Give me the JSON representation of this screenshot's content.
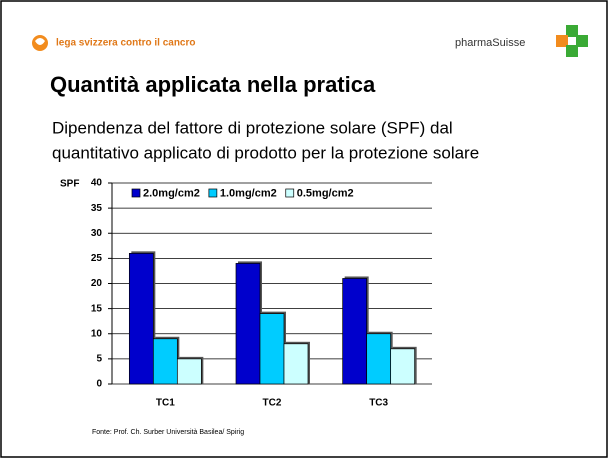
{
  "header": {
    "brand": "lega svizzera contro il cancro",
    "logo": "pharmaSuisse"
  },
  "slide": {
    "title": "Quantità applicata nella pratica",
    "subtitle_lines": [
      "Dipendenza del fattore di protezione solare (SPF) dal",
      "quantitativo applicato di prodotto per la protezione solare"
    ],
    "source": "Fonte: Prof. Ch. Surber Università Basilea/ Spirig"
  },
  "chart_data": {
    "type": "bar",
    "y_label": "SPF",
    "categories": [
      "TC1",
      "TC2",
      "TC3"
    ],
    "series": [
      {
        "name": "2.0mg/cm2",
        "color": "#0000cc",
        "values": [
          26,
          24,
          21
        ]
      },
      {
        "name": "1.0mg/cm2",
        "color": "#00ccff",
        "values": [
          9,
          14,
          10
        ]
      },
      {
        "name": "0.5mg/cm2",
        "color": "#ccffff",
        "values": [
          5,
          8,
          7
        ]
      }
    ],
    "ylim": [
      0,
      40
    ],
    "yticks": [
      0,
      5,
      10,
      15,
      20,
      25,
      30,
      35,
      40
    ],
    "grid": true,
    "legend": "top"
  }
}
